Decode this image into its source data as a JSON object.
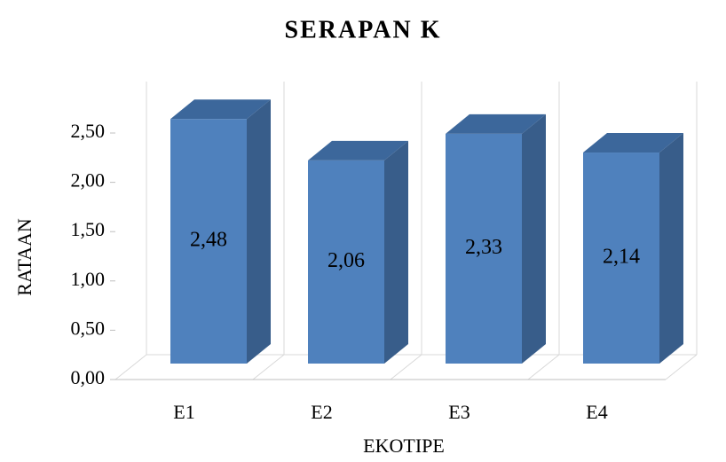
{
  "chart_data": {
    "type": "bar3d",
    "title": "SERAPAN K",
    "x_label": "EKOTIPE",
    "y_label": "RATAAN",
    "categories": [
      "E1",
      "E2",
      "E3",
      "E4"
    ],
    "values": [
      2.48,
      2.06,
      2.33,
      2.14
    ],
    "value_labels": [
      "2,48",
      "2,06",
      "2,33",
      "2,14"
    ],
    "color": "#4f81bd",
    "ylim": [
      0,
      2.5
    ],
    "yticks": [
      {
        "value": 0,
        "label": "0,00"
      },
      {
        "value": 0.5,
        "label": "0,50"
      },
      {
        "value": 1,
        "label": "1,00"
      },
      {
        "value": 1.5,
        "label": "1,50"
      },
      {
        "value": 2,
        "label": "2,00"
      },
      {
        "value": 2.5,
        "label": "2,50"
      }
    ]
  }
}
